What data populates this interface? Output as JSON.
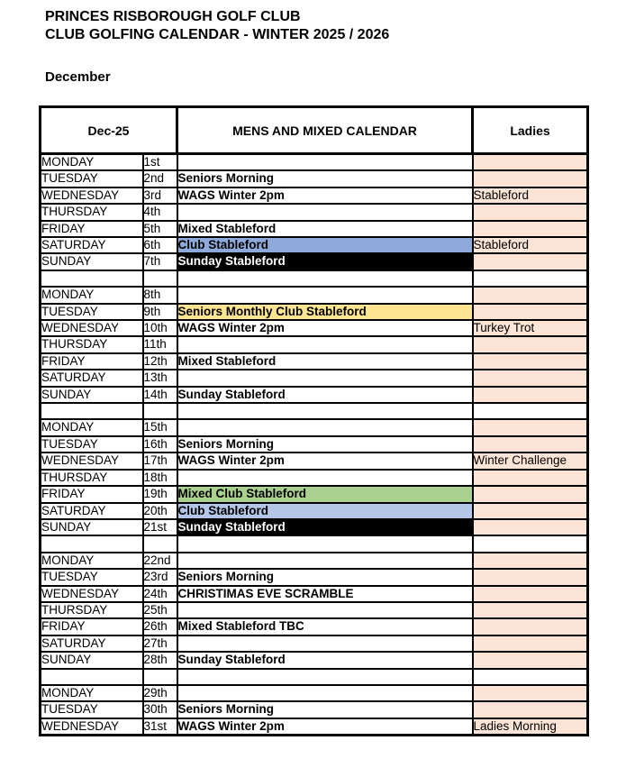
{
  "page_title": {
    "line1": "PRINCES RISBOROUGH GOLF CLUB",
    "line2": "CLUB GOLFING CALENDAR - WINTER 2025 / 2026",
    "month": "December"
  },
  "table": {
    "header": {
      "date_col": "Dec-25",
      "mens_col": "MENS AND MIXED CALENDAR",
      "ladies_col": "Ladies"
    },
    "rows": [
      {
        "type": "day",
        "day": "MONDAY",
        "date": "1st",
        "mens": "",
        "mens_style": null,
        "ladies": ""
      },
      {
        "type": "day",
        "day": "TUESDAY",
        "date": "2nd",
        "mens": "Seniors Morning",
        "mens_style": null,
        "ladies": ""
      },
      {
        "type": "day",
        "day": "WEDNESDAY",
        "date": "3rd",
        "mens": "WAGS Winter 2pm",
        "mens_style": null,
        "ladies": "Stableford"
      },
      {
        "type": "day",
        "day": "THURSDAY",
        "date": "4th",
        "mens": "",
        "mens_style": null,
        "ladies": ""
      },
      {
        "type": "day",
        "day": "FRIDAY",
        "date": "5th",
        "mens": "Mixed Stableford",
        "mens_style": null,
        "ladies": ""
      },
      {
        "type": "day",
        "day": "SATURDAY",
        "date": "6th",
        "mens": "Club Stableford",
        "mens_style": "blue1",
        "ladies": "Stableford"
      },
      {
        "type": "day",
        "day": "SUNDAY",
        "date": "7th",
        "mens": "Sunday Stableford",
        "mens_style": "black",
        "ladies": ""
      },
      {
        "type": "spacer"
      },
      {
        "type": "day",
        "day": "MONDAY",
        "date": "8th",
        "mens": "",
        "mens_style": null,
        "ladies": ""
      },
      {
        "type": "day",
        "day": "TUESDAY",
        "date": "9th",
        "mens": "Seniors Monthly Club Stableford",
        "mens_style": "yellow",
        "ladies": ""
      },
      {
        "type": "day",
        "day": "WEDNESDAY",
        "date": "10th",
        "mens": "WAGS Winter 2pm",
        "mens_style": null,
        "ladies": "Turkey Trot"
      },
      {
        "type": "day",
        "day": "THURSDAY",
        "date": "11th",
        "mens": "",
        "mens_style": null,
        "ladies": ""
      },
      {
        "type": "day",
        "day": "FRIDAY",
        "date": "12th",
        "mens": "Mixed Stableford",
        "mens_style": null,
        "ladies": ""
      },
      {
        "type": "day",
        "day": "SATURDAY",
        "date": "13th",
        "mens": "",
        "mens_style": null,
        "ladies": ""
      },
      {
        "type": "day",
        "day": "SUNDAY",
        "date": "14th",
        "mens": "Sunday Stableford",
        "mens_style": null,
        "ladies": ""
      },
      {
        "type": "spacer"
      },
      {
        "type": "day",
        "day": "MONDAY",
        "date": "15th",
        "mens": "",
        "mens_style": null,
        "ladies": ""
      },
      {
        "type": "day",
        "day": "TUESDAY",
        "date": "16th",
        "mens": "Seniors Morning",
        "mens_style": null,
        "ladies": ""
      },
      {
        "type": "day",
        "day": "WEDNESDAY",
        "date": "17th",
        "mens": "WAGS Winter 2pm",
        "mens_style": null,
        "ladies": "Winter Challenge"
      },
      {
        "type": "day",
        "day": "THURSDAY",
        "date": "18th",
        "mens": "",
        "mens_style": null,
        "ladies": ""
      },
      {
        "type": "day",
        "day": "FRIDAY",
        "date": "19th",
        "mens": "Mixed Club Stableford",
        "mens_style": "green",
        "ladies": ""
      },
      {
        "type": "day",
        "day": "SATURDAY",
        "date": "20th",
        "mens": "Club Stableford",
        "mens_style": "blue2",
        "ladies": ""
      },
      {
        "type": "day",
        "day": "SUNDAY",
        "date": "21st",
        "mens": "Sunday Stableford",
        "mens_style": "black",
        "ladies": ""
      },
      {
        "type": "spacer"
      },
      {
        "type": "day",
        "day": "MONDAY",
        "date": "22nd",
        "mens": "",
        "mens_style": null,
        "ladies": ""
      },
      {
        "type": "day",
        "day": "TUESDAY",
        "date": "23rd",
        "mens": "Seniors Morning",
        "mens_style": null,
        "ladies": ""
      },
      {
        "type": "day",
        "day": "WEDNESDAY",
        "date": "24th",
        "mens": "CHRISTIMAS EVE SCRAMBLE",
        "mens_style": null,
        "ladies": ""
      },
      {
        "type": "day",
        "day": "THURSDAY",
        "date": "25th",
        "mens": "",
        "mens_style": null,
        "ladies": ""
      },
      {
        "type": "day",
        "day": "FRIDAY",
        "date": "26th",
        "mens": "Mixed Stableford TBC",
        "mens_style": null,
        "ladies": ""
      },
      {
        "type": "day",
        "day": "SATURDAY",
        "date": "27th",
        "mens": "",
        "mens_style": null,
        "ladies": ""
      },
      {
        "type": "day",
        "day": "SUNDAY",
        "date": "28th",
        "mens": "Sunday Stableford",
        "mens_style": null,
        "ladies": ""
      },
      {
        "type": "spacer"
      },
      {
        "type": "day",
        "day": "MONDAY",
        "date": "29th",
        "mens": "",
        "mens_style": null,
        "ladies": ""
      },
      {
        "type": "day",
        "day": "TUESDAY",
        "date": "30th",
        "mens": "Seniors Morning",
        "mens_style": null,
        "ladies": ""
      },
      {
        "type": "day",
        "day": "WEDNESDAY",
        "date": "31st",
        "mens": "WAGS Winter 2pm",
        "mens_style": null,
        "ladies": "Ladies Morning"
      }
    ]
  },
  "colors": {
    "ladies_cell_bg": "#FCE4D6",
    "club_stableford_blue": "#8EAADB",
    "club_stableford_light_blue": "#B4C6E7",
    "seniors_monthly_yellow": "#FFE491",
    "mixed_club_green": "#A9D08E",
    "sunday_black": "#000000",
    "sunday_text_white": "#FFFFFF",
    "border_black": "#000000"
  }
}
